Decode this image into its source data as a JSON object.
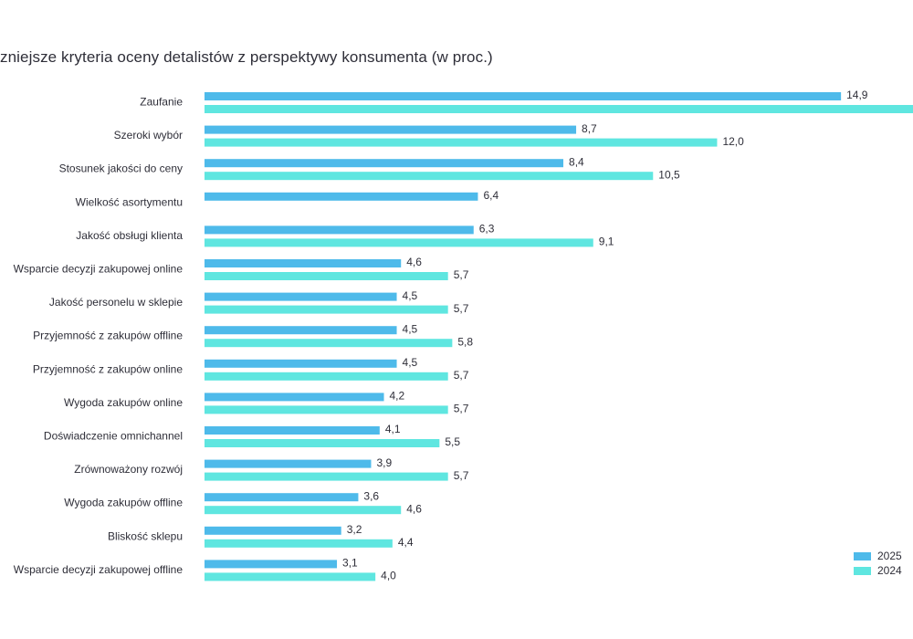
{
  "chart_data": {
    "type": "bar",
    "orientation": "horizontal",
    "title": "zniejsze kryteria oceny detalistów z perspektywy konsumenta (w proc.)",
    "xlim": [
      0,
      16.5
    ],
    "grid": false,
    "legend_position": "bottom-right",
    "categories": [
      "Zaufanie",
      "Szeroki wybór",
      "Stosunek jakości do ceny",
      "Wielkość asortymentu",
      "Jakość obsługi klienta",
      "Wsparcie decyzji zakupowej online",
      "Jakość personelu w sklepie",
      "Przyjemność z zakupów offline",
      "Przyjemność z zakupów online",
      "Wygoda zakupów online",
      "Doświadczenie omnichannel",
      "Zrównoważony rozwój",
      "Wygoda zakupów offline",
      "Bliskość sklepu",
      "Wsparcie decyzji zakupowej offline"
    ],
    "series": [
      {
        "name": "2025",
        "color": "#4ebaea",
        "values": [
          14.9,
          8.7,
          8.4,
          6.4,
          6.3,
          4.6,
          4.5,
          4.5,
          4.5,
          4.2,
          4.1,
          3.9,
          3.6,
          3.2,
          3.1
        ],
        "labels": [
          "14,9",
          "8,7",
          "8,4",
          "6,4",
          "6,3",
          "4,6",
          "4,5",
          "4,5",
          "4,5",
          "4,2",
          "4,1",
          "3,9",
          "3,6",
          "3,2",
          "3,1"
        ]
      },
      {
        "name": "2024",
        "color": "#5fe6e0",
        "values": [
          16.6,
          12.0,
          10.5,
          null,
          9.1,
          5.7,
          5.7,
          5.8,
          5.7,
          5.7,
          5.5,
          5.7,
          4.6,
          4.4,
          4.0
        ],
        "labels": [
          "",
          "12,0",
          "10,5",
          "",
          "9,1",
          "5,7",
          "5,7",
          "5,8",
          "5,7",
          "5,7",
          "5,5",
          "5,7",
          "4,6",
          "4,4",
          "4,0"
        ]
      }
    ]
  }
}
